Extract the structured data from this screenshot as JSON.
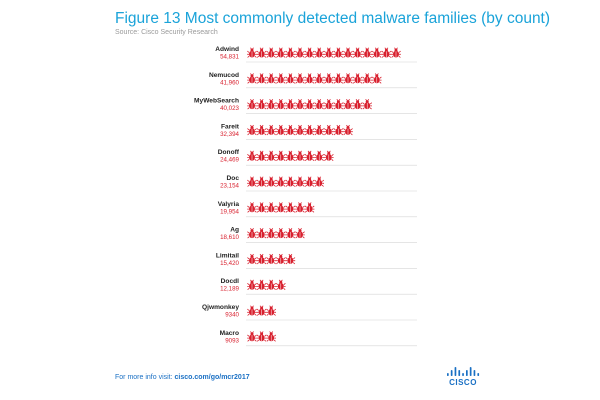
{
  "header": {
    "title": "Figure 13  Most commonly detected malware families (by count)",
    "source": "Source: Cisco Security Research"
  },
  "chart_data": {
    "type": "pictograph",
    "title": "Figure 13  Most commonly detected malware families (by count)",
    "categories": [
      "Adwind",
      "Nemucod",
      "MyWebSearch",
      "Fareit",
      "Donoff",
      "Doc",
      "Valyria",
      "Ag",
      "Limitail",
      "Docdl",
      "Qjwmonkey",
      "Macro"
    ],
    "values": [
      54831,
      41960,
      40023,
      32394,
      24469,
      23154,
      19954,
      18610,
      15420,
      12189,
      9340,
      9093
    ],
    "value_labels": [
      "54,831",
      "41,960",
      "40,023",
      "32,394",
      "24,469",
      "23,154",
      "19,954",
      "18,610",
      "15,420",
      "12,189",
      "9340",
      "9093"
    ],
    "icon": "bug-icon",
    "icon_counts": [
      16,
      14,
      13,
      11,
      9,
      8,
      7,
      6,
      5,
      4,
      3,
      3
    ],
    "colors": {
      "icon": "#d8202e",
      "value": "#d8202e",
      "label": "#222222",
      "divider": "#d6d6d6"
    }
  },
  "footer": {
    "lead": "For more info visit: ",
    "link": "cisco.com/go/mcr2017"
  },
  "brand": {
    "logo": "cisco-logo",
    "name": "CISCO",
    "color": "#1a70c4"
  }
}
